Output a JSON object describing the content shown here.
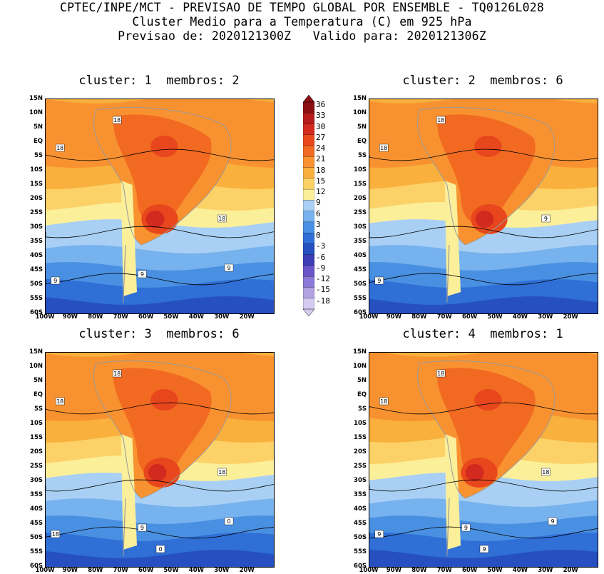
{
  "header": {
    "line1": "CPTEC/INPE/MCT - PREVISAO DE TEMPO GLOBAL POR ENSEMBLE - TQ0126L028",
    "line2": "Cluster Medio para a Temperatura (C) em 925 hPa",
    "line3": "Previsao de: 2020121300Z   Valido para: 2020121306Z"
  },
  "panels": [
    {
      "title": "cluster: 1  membros: 2",
      "labels": [
        "18",
        "18",
        "18",
        "9",
        "9",
        "9"
      ]
    },
    {
      "title": "cluster: 2  membros: 6",
      "labels": [
        "18",
        "18",
        "9",
        "9"
      ]
    },
    {
      "title": "cluster: 3  membros: 6",
      "labels": [
        "18",
        "18",
        "18",
        "18",
        "9",
        "0",
        "0"
      ]
    },
    {
      "title": "cluster: 4  membros: 1",
      "labels": [
        "18",
        "18",
        "18",
        "9",
        "9",
        "9",
        "9"
      ]
    }
  ],
  "axes": {
    "lat_ticks": [
      "15N",
      "10N",
      "5N",
      "EQ",
      "5S",
      "10S",
      "15S",
      "20S",
      "25S",
      "30S",
      "35S",
      "40S",
      "45S",
      "50S",
      "55S",
      "60S"
    ],
    "lon_ticks": [
      "100W",
      "90W",
      "80W",
      "70W",
      "60W",
      "50W",
      "40W",
      "30W",
      "20W"
    ]
  },
  "colorbar": {
    "labels": [
      "36",
      "33",
      "30",
      "27",
      "24",
      "21",
      "18",
      "15",
      "12",
      "9",
      "6",
      "3",
      "0",
      "-3",
      "-6",
      "-9",
      "-12",
      "-15",
      "-18"
    ],
    "colors": [
      "#8b1014",
      "#b51b1b",
      "#d22a1e",
      "#e8461c",
      "#f26a21",
      "#f89230",
      "#f9b03c",
      "#fcd268",
      "#fbef9a",
      "#a9d0f4",
      "#76b2ee",
      "#4a90e2",
      "#2f6fd6",
      "#2650c0",
      "#3d3db5",
      "#6a56c8",
      "#8c78d6",
      "#b3a2e2",
      "#d5caef"
    ]
  }
}
